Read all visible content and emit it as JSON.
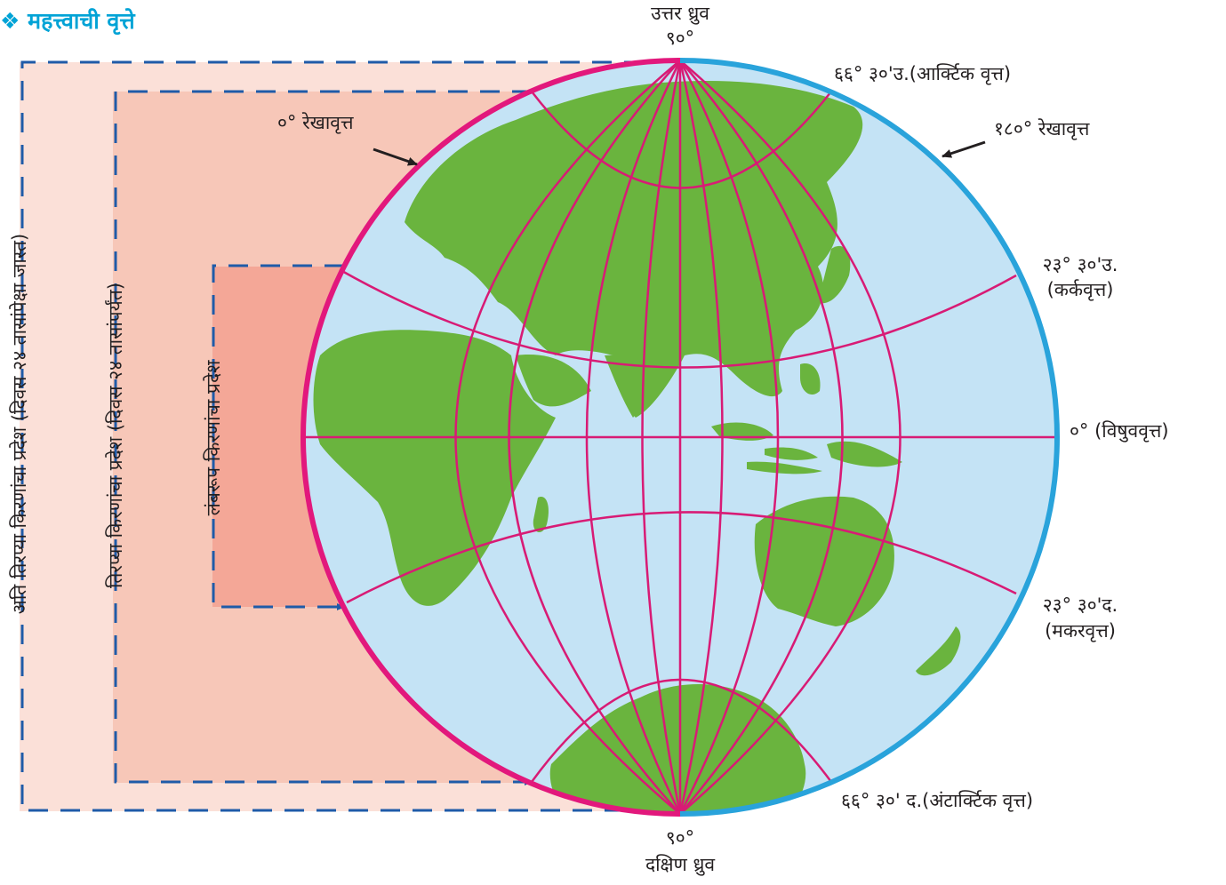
{
  "title": "❖ महत्त्वाची वृत्ते",
  "labels": {
    "north_pole": "उत्तर ध्रुव",
    "north_pole_deg": "९०°",
    "south_pole_deg": "९०°",
    "south_pole": "दक्षिण ध्रुव",
    "arctic_circle": "६६° ३०'उ.(आर्क्टिक वृत्त)",
    "meridian_180": "१८०° रेखावृत्त",
    "meridian_0": "०° रेखावृत्त",
    "tropic_cancer_deg": "२३° ३०'उ.",
    "tropic_cancer_name": "(कर्कवृत्त)",
    "equator": "०° (विषुववृत्त)",
    "tropic_capricorn_deg": "२३° ३०'द.",
    "tropic_capricorn_name": "(मकरवृत्त)",
    "antarctic_circle": "६६° ३०' द.(अंटार्क्टिक वृत्त)"
  },
  "zones": {
    "outer": "अति तिरप्या किरणांचा प्रदेश (दिवस २४ तासांपेक्षा जास्त)",
    "middle": "तिरप्या किरणांचा प्रदेश (दिवस २४ तासांपर्यंत)",
    "inner": "लंबरूप किरणांचा प्रदेश"
  },
  "colors": {
    "ocean": "#c4e3f5",
    "land": "#6ab43e",
    "grid": "#d81b75",
    "meridian_0": "#e2187c",
    "meridian_180": "#29a3db",
    "zone_outer": "#fbe0d8",
    "zone_middle": "#f7c7b8",
    "zone_inner": "#f4a797",
    "dash": "#1f5ba8",
    "title": "#00a3d6"
  }
}
